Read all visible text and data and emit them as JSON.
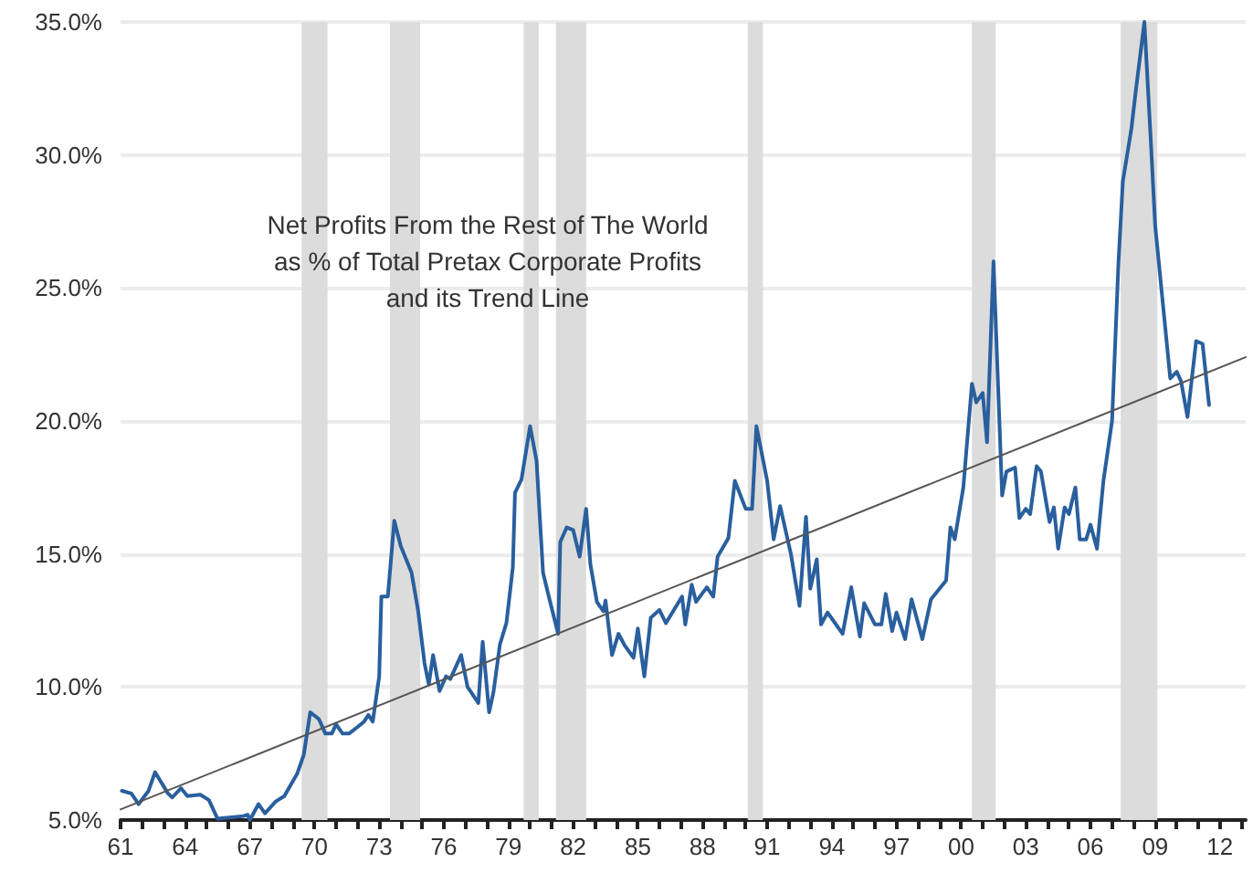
{
  "chart_data": {
    "type": "line",
    "title": "Net Profits From the Rest of The World\nas % of Total Pretax Corporate Profits\nand its Trend Line",
    "xlim": [
      1961,
      2013.2
    ],
    "xticks": [
      {
        "value": 1961,
        "label": "61"
      },
      {
        "value": 1962,
        "label": null
      },
      {
        "value": 1963,
        "label": null
      },
      {
        "value": 1964,
        "label": "64"
      },
      {
        "value": 1965,
        "label": null
      },
      {
        "value": 1966,
        "label": null
      },
      {
        "value": 1967,
        "label": "67"
      },
      {
        "value": 1968,
        "label": null
      },
      {
        "value": 1969,
        "label": null
      },
      {
        "value": 1970,
        "label": "70"
      },
      {
        "value": 1971,
        "label": null
      },
      {
        "value": 1972,
        "label": null
      },
      {
        "value": 1973,
        "label": "73"
      },
      {
        "value": 1974,
        "label": null
      },
      {
        "value": 1975,
        "label": null
      },
      {
        "value": 1976,
        "label": "76"
      },
      {
        "value": 1977,
        "label": null
      },
      {
        "value": 1978,
        "label": null
      },
      {
        "value": 1979,
        "label": "79"
      },
      {
        "value": 1980,
        "label": null
      },
      {
        "value": 1981,
        "label": null
      },
      {
        "value": 1982,
        "label": "82"
      },
      {
        "value": 1983,
        "label": null
      },
      {
        "value": 1984,
        "label": null
      },
      {
        "value": 1985,
        "label": "85"
      },
      {
        "value": 1986,
        "label": null
      },
      {
        "value": 1987,
        "label": null
      },
      {
        "value": 1988,
        "label": "88"
      },
      {
        "value": 1989,
        "label": null
      },
      {
        "value": 1990,
        "label": null
      },
      {
        "value": 1991,
        "label": "91"
      },
      {
        "value": 1992,
        "label": null
      },
      {
        "value": 1993,
        "label": null
      },
      {
        "value": 1994,
        "label": "94"
      },
      {
        "value": 1995,
        "label": null
      },
      {
        "value": 1996,
        "label": null
      },
      {
        "value": 1997,
        "label": "97"
      },
      {
        "value": 1998,
        "label": null
      },
      {
        "value": 1999,
        "label": null
      },
      {
        "value": 2000,
        "label": "00"
      },
      {
        "value": 2001,
        "label": null
      },
      {
        "value": 2002,
        "label": null
      },
      {
        "value": 2003,
        "label": "03"
      },
      {
        "value": 2004,
        "label": null
      },
      {
        "value": 2005,
        "label": null
      },
      {
        "value": 2006,
        "label": "06"
      },
      {
        "value": 2007,
        "label": null
      },
      {
        "value": 2008,
        "label": null
      },
      {
        "value": 2009,
        "label": "09"
      },
      {
        "value": 2010,
        "label": null
      },
      {
        "value": 2011,
        "label": null
      },
      {
        "value": 2012,
        "label": "12"
      },
      {
        "value": 2013,
        "label": null
      }
    ],
    "ylim": [
      5,
      35
    ],
    "yticks": [
      {
        "value": 5,
        "label": "5.0%"
      },
      {
        "value": 10,
        "label": "10.0%"
      },
      {
        "value": 15,
        "label": "15.0%"
      },
      {
        "value": 20,
        "label": "20.0%"
      },
      {
        "value": 25,
        "label": "25.0%"
      },
      {
        "value": 30,
        "label": "30.0%"
      },
      {
        "value": 35,
        "label": "35.0%"
      }
    ],
    "grid": "y",
    "marker": "none",
    "line_style": "solid",
    "series": [
      {
        "color": "#2a5f9e",
        "x": [
          1961.06,
          1961.5,
          1961.84,
          1962.3,
          1962.6,
          1963.2,
          1963.4,
          1963.8,
          1964.1,
          1964.7,
          1965.1,
          1965.5,
          1966.7,
          1966.9,
          1967.0,
          1967.4,
          1967.7,
          1968.2,
          1968.6,
          1969.2,
          1969.5,
          1969.8,
          1970.2,
          1970.5,
          1970.8,
          1971.0,
          1971.3,
          1971.6,
          1972.0,
          1972.3,
          1972.5,
          1972.7,
          1973.0,
          1973.1,
          1973.4,
          1973.7,
          1974.0,
          1974.5,
          1974.8,
          1975.1,
          1975.3,
          1975.5,
          1975.8,
          1976.1,
          1976.3,
          1976.8,
          1977.1,
          1977.6,
          1977.8,
          1978.1,
          1978.3,
          1978.6,
          1978.9,
          1979.2,
          1979.3,
          1979.6,
          1980.0,
          1980.3,
          1980.6,
          1980.9,
          1981.3,
          1981.4,
          1981.7,
          1982.0,
          1982.3,
          1982.6,
          1982.8,
          1983.1,
          1983.4,
          1983.5,
          1983.8,
          1984.1,
          1984.4,
          1984.8,
          1985.0,
          1985.3,
          1985.6,
          1986.0,
          1986.3,
          1986.6,
          1987.05,
          1987.2,
          1987.5,
          1987.7,
          1988.2,
          1988.5,
          1988.7,
          1989.2,
          1989.5,
          1990.0,
          1990.3,
          1990.5,
          1991.0,
          1991.3,
          1991.6,
          1992.1,
          1992.5,
          1992.8,
          1993.0,
          1993.3,
          1993.5,
          1993.8,
          1994.5,
          1994.9,
          1995.3,
          1995.5,
          1996.0,
          1996.3,
          1996.5,
          1996.8,
          1997.0,
          1997.4,
          1997.7,
          1998.2,
          1998.6,
          1999.3,
          1999.5,
          1999.7,
          2000.1,
          2000.5,
          2000.7,
          2001.0,
          2001.2,
          2001.5,
          2001.9,
          2002.1,
          2002.5,
          2002.7,
          2003.0,
          2003.2,
          2003.5,
          2003.7,
          2004.1,
          2004.3,
          2004.5,
          2004.8,
          2005.0,
          2005.3,
          2005.5,
          2005.8,
          2006.0,
          2006.3,
          2006.6,
          2007.0,
          2007.3,
          2007.5,
          2007.9,
          2008.1,
          2008.5,
          2008.8,
          2009.0,
          2009.7,
          2010.0,
          2010.2,
          2010.5,
          2010.9,
          2011.2,
          2011.5
        ],
        "values": [
          6.1,
          6.0,
          5.6,
          6.1,
          6.8,
          6.0,
          5.85,
          6.2,
          5.9,
          5.95,
          5.75,
          5.05,
          5.15,
          5.2,
          5.0,
          5.6,
          5.25,
          5.7,
          5.9,
          6.75,
          7.45,
          9.05,
          8.8,
          8.25,
          8.25,
          8.6,
          8.25,
          8.25,
          8.5,
          8.7,
          8.95,
          8.7,
          10.4,
          13.4,
          13.4,
          16.25,
          15.3,
          14.3,
          12.9,
          10.9,
          10.1,
          11.2,
          9.85,
          10.4,
          10.3,
          11.2,
          10.0,
          9.4,
          11.7,
          9.05,
          9.8,
          11.6,
          12.4,
          14.5,
          17.3,
          17.8,
          19.8,
          18.5,
          14.3,
          13.3,
          12.0,
          15.45,
          16.0,
          15.9,
          14.9,
          16.7,
          14.6,
          13.2,
          12.85,
          13.25,
          11.2,
          12.0,
          11.55,
          11.1,
          12.2,
          10.4,
          12.6,
          12.9,
          12.4,
          12.8,
          13.4,
          12.35,
          13.85,
          13.2,
          13.75,
          13.4,
          14.9,
          15.6,
          17.75,
          16.7,
          16.7,
          19.8,
          17.75,
          15.55,
          16.8,
          15.0,
          13.05,
          16.4,
          13.7,
          14.8,
          12.35,
          12.8,
          12.0,
          13.75,
          11.9,
          13.15,
          12.35,
          12.35,
          13.5,
          12.1,
          12.8,
          11.8,
          13.3,
          11.8,
          13.3,
          14.0,
          16.0,
          15.55,
          17.5,
          21.4,
          20.7,
          21.05,
          19.2,
          26.0,
          17.2,
          18.1,
          18.25,
          16.35,
          16.7,
          16.5,
          18.3,
          18.1,
          16.2,
          16.75,
          15.2,
          16.75,
          16.5,
          17.5,
          15.55,
          15.55,
          16.1,
          15.2,
          17.75,
          20.0,
          26.0,
          29.0,
          31.0,
          32.4,
          35.0,
          30.5,
          27.35,
          21.6,
          21.85,
          21.5,
          20.15,
          23.0,
          22.9,
          20.6
        ]
      },
      {
        "color": "#555555",
        "x": [
          1961,
          2013.2
        ],
        "values": [
          5.4,
          22.4
        ]
      }
    ],
    "bands": [
      {
        "axis": "x",
        "from": 1969.4,
        "to": 1970.6,
        "color": "#dcdcdc"
      },
      {
        "axis": "x",
        "from": 1973.5,
        "to": 1974.9,
        "color": "#dcdcdc"
      },
      {
        "axis": "x",
        "from": 1979.7,
        "to": 1980.4,
        "color": "#dcdcdc"
      },
      {
        "axis": "x",
        "from": 1981.2,
        "to": 1982.6,
        "color": "#dcdcdc"
      },
      {
        "axis": "x",
        "from": 1990.1,
        "to": 1990.8,
        "color": "#dcdcdc"
      },
      {
        "axis": "x",
        "from": 2000.5,
        "to": 2001.6,
        "color": "#dcdcdc"
      },
      {
        "axis": "x",
        "from": 2007.4,
        "to": 2009.1,
        "color": "#dcdcdc"
      }
    ]
  }
}
